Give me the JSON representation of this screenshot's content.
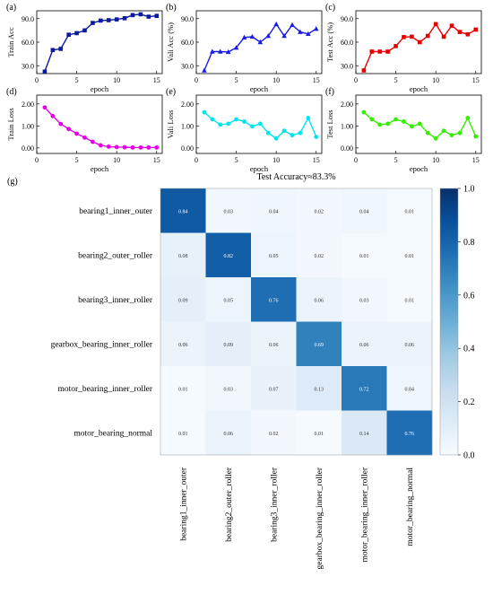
{
  "chart_data": [
    {
      "type": "line",
      "panel": "(a)",
      "ylabel": "Train Acc",
      "xlabel": "epoch",
      "color": "#0a1a9a",
      "marker": "square",
      "x": [
        1,
        2,
        3,
        4,
        5,
        6,
        7,
        8,
        9,
        10,
        11,
        12,
        13,
        14,
        15
      ],
      "values": [
        22.5,
        50.0,
        51.5,
        69.5,
        71.5,
        75.0,
        84.5,
        87.5,
        88.0,
        89.0,
        90.5,
        94.5,
        95.5,
        92.5,
        93.5
      ],
      "xticks": [
        0,
        5,
        10,
        15
      ],
      "yticks": [
        30.0,
        60.0,
        90.0
      ],
      "ytick_labels": [
        "30.0",
        "60.0",
        "90.0"
      ],
      "xlim": [
        0,
        15.7
      ],
      "ylim": [
        20,
        100
      ]
    },
    {
      "type": "line",
      "panel": "(b)",
      "ylabel": "Vali Acc (%)",
      "xlabel": "epoch",
      "color": "#1a1ae6",
      "marker": "triangle",
      "x": [
        1,
        2,
        3,
        4,
        5,
        6,
        7,
        8,
        9,
        10,
        11,
        12,
        13,
        14,
        15
      ],
      "values": [
        24.0,
        48.0,
        48.0,
        47.5,
        53.0,
        66.0,
        67.0,
        60.0,
        68.0,
        83.0,
        68.0,
        82.0,
        73.0,
        70.5,
        77.0
      ],
      "xticks": [
        0,
        5,
        10,
        15
      ],
      "yticks": [
        30.0,
        60.0,
        90.0
      ],
      "ytick_labels": [
        "30.0",
        "60.0",
        "90.0"
      ],
      "xlim": [
        0,
        15.7
      ],
      "ylim": [
        20,
        100
      ]
    },
    {
      "type": "line",
      "panel": "(c)",
      "ylabel": "Test Acc (%)",
      "xlabel": "epoch",
      "color": "#e60000",
      "marker": "square",
      "x": [
        1,
        2,
        3,
        4,
        5,
        6,
        7,
        8,
        9,
        10,
        11,
        12,
        13,
        14,
        15
      ],
      "values": [
        24.0,
        48.0,
        48.0,
        48.0,
        55.0,
        66.5,
        67.0,
        60.0,
        68.0,
        83.0,
        67.0,
        81.0,
        73.0,
        70.0,
        76.0
      ],
      "xticks": [
        0,
        5,
        10,
        15
      ],
      "yticks": [
        30.0,
        60.0,
        90.0
      ],
      "ytick_labels": [
        "30.0",
        "60.0",
        "90.0"
      ],
      "xlim": [
        0,
        15.7
      ],
      "ylim": [
        20,
        100
      ]
    },
    {
      "type": "line",
      "panel": "(d)",
      "ylabel": "Train Loss",
      "xlabel": "epoch",
      "color": "#e600e6",
      "marker": "circle",
      "x": [
        1,
        2,
        3,
        4,
        5,
        6,
        7,
        8,
        9,
        10,
        11,
        12,
        13,
        14,
        15
      ],
      "values": [
        1.84,
        1.45,
        1.09,
        0.86,
        0.65,
        0.47,
        0.28,
        0.12,
        0.06,
        0.04,
        0.03,
        0.02,
        0.02,
        0.02,
        0.02
      ],
      "xticks": [
        0,
        5,
        10,
        15
      ],
      "yticks": [
        0.0,
        1.0,
        2.0
      ],
      "ytick_labels": [
        "0.00",
        "1.00",
        "2.00"
      ],
      "xlim": [
        0,
        15.7
      ],
      "ylim": [
        -0.25,
        2.4
      ]
    },
    {
      "type": "line",
      "panel": "(e)",
      "ylabel": "Vali Loss",
      "xlabel": "epoch",
      "color": "#00e5ee",
      "marker": "circle",
      "x": [
        1,
        2,
        3,
        4,
        5,
        6,
        7,
        8,
        9,
        10,
        11,
        12,
        13,
        14,
        15
      ],
      "values": [
        1.62,
        1.3,
        1.06,
        1.1,
        1.3,
        1.2,
        0.98,
        1.1,
        0.68,
        0.43,
        0.78,
        0.58,
        0.68,
        1.36,
        0.5
      ],
      "xticks": [
        0,
        5,
        10,
        15
      ],
      "yticks": [
        0.0,
        1.0,
        2.0
      ],
      "ytick_labels": [
        "0.00",
        "1.00",
        "2.00"
      ],
      "xlim": [
        0,
        15.7
      ],
      "ylim": [
        -0.25,
        2.4
      ]
    },
    {
      "type": "line",
      "panel": "(f)",
      "ylabel": "Test Loss",
      "xlabel": "epoch",
      "color": "#33ee00",
      "marker": "circle",
      "x": [
        1,
        2,
        3,
        4,
        5,
        6,
        7,
        8,
        9,
        10,
        11,
        12,
        13,
        14,
        15
      ],
      "values": [
        1.62,
        1.3,
        1.06,
        1.1,
        1.3,
        1.2,
        0.98,
        1.1,
        0.68,
        0.43,
        0.78,
        0.58,
        0.68,
        1.36,
        0.52
      ],
      "xticks": [
        0,
        5,
        10,
        15
      ],
      "yticks": [
        0.0,
        1.0,
        2.0
      ],
      "ytick_labels": [
        "0.00",
        "1.00",
        "2.00"
      ],
      "xlim": [
        0,
        15.7
      ],
      "ylim": [
        -0.25,
        2.4
      ]
    },
    {
      "type": "heatmap",
      "panel": "(g)",
      "title": "Test Accuracy≈83.3%",
      "rows": [
        "bearing1_inner_outer",
        "bearing2_outer_roller",
        "bearing3_inner_roller",
        "gearbox_bearing_inner_roller",
        "motor_bearing_inner_roller",
        "motor_bearing_normal"
      ],
      "columns": [
        "bearing1_inner_outer",
        "bearing2_outer_roller",
        "bearing3_inner_roller",
        "gearbox_bearing_inner_roller",
        "motor_bearing_inner_roller",
        "motor_bearing_normal"
      ],
      "values": [
        [
          0.84,
          0.03,
          0.04,
          0.02,
          0.04,
          0.01
        ],
        [
          0.08,
          0.82,
          0.05,
          0.02,
          0.01,
          0.01
        ],
        [
          0.09,
          0.05,
          0.76,
          0.06,
          0.03,
          0.01
        ],
        [
          0.06,
          0.09,
          0.06,
          0.69,
          0.06,
          0.06
        ],
        [
          0.01,
          0.03,
          0.07,
          0.13,
          0.72,
          0.04
        ],
        [
          0.01,
          0.06,
          0.02,
          0.01,
          0.14,
          0.76
        ]
      ],
      "colorbar": {
        "min": 0.0,
        "max": 1.0,
        "ticks": [
          0.0,
          0.2,
          0.4,
          0.6,
          0.8,
          1.0
        ],
        "tick_labels": [
          "0.0",
          "0.2",
          "0.4",
          "0.6",
          "0.8",
          "1.0"
        ],
        "colors": [
          "#f7fbff",
          "#deebf7",
          "#c6dbef",
          "#9ecae1",
          "#6baed6",
          "#4292c6",
          "#2171b5",
          "#08519c",
          "#08306b"
        ]
      }
    }
  ]
}
